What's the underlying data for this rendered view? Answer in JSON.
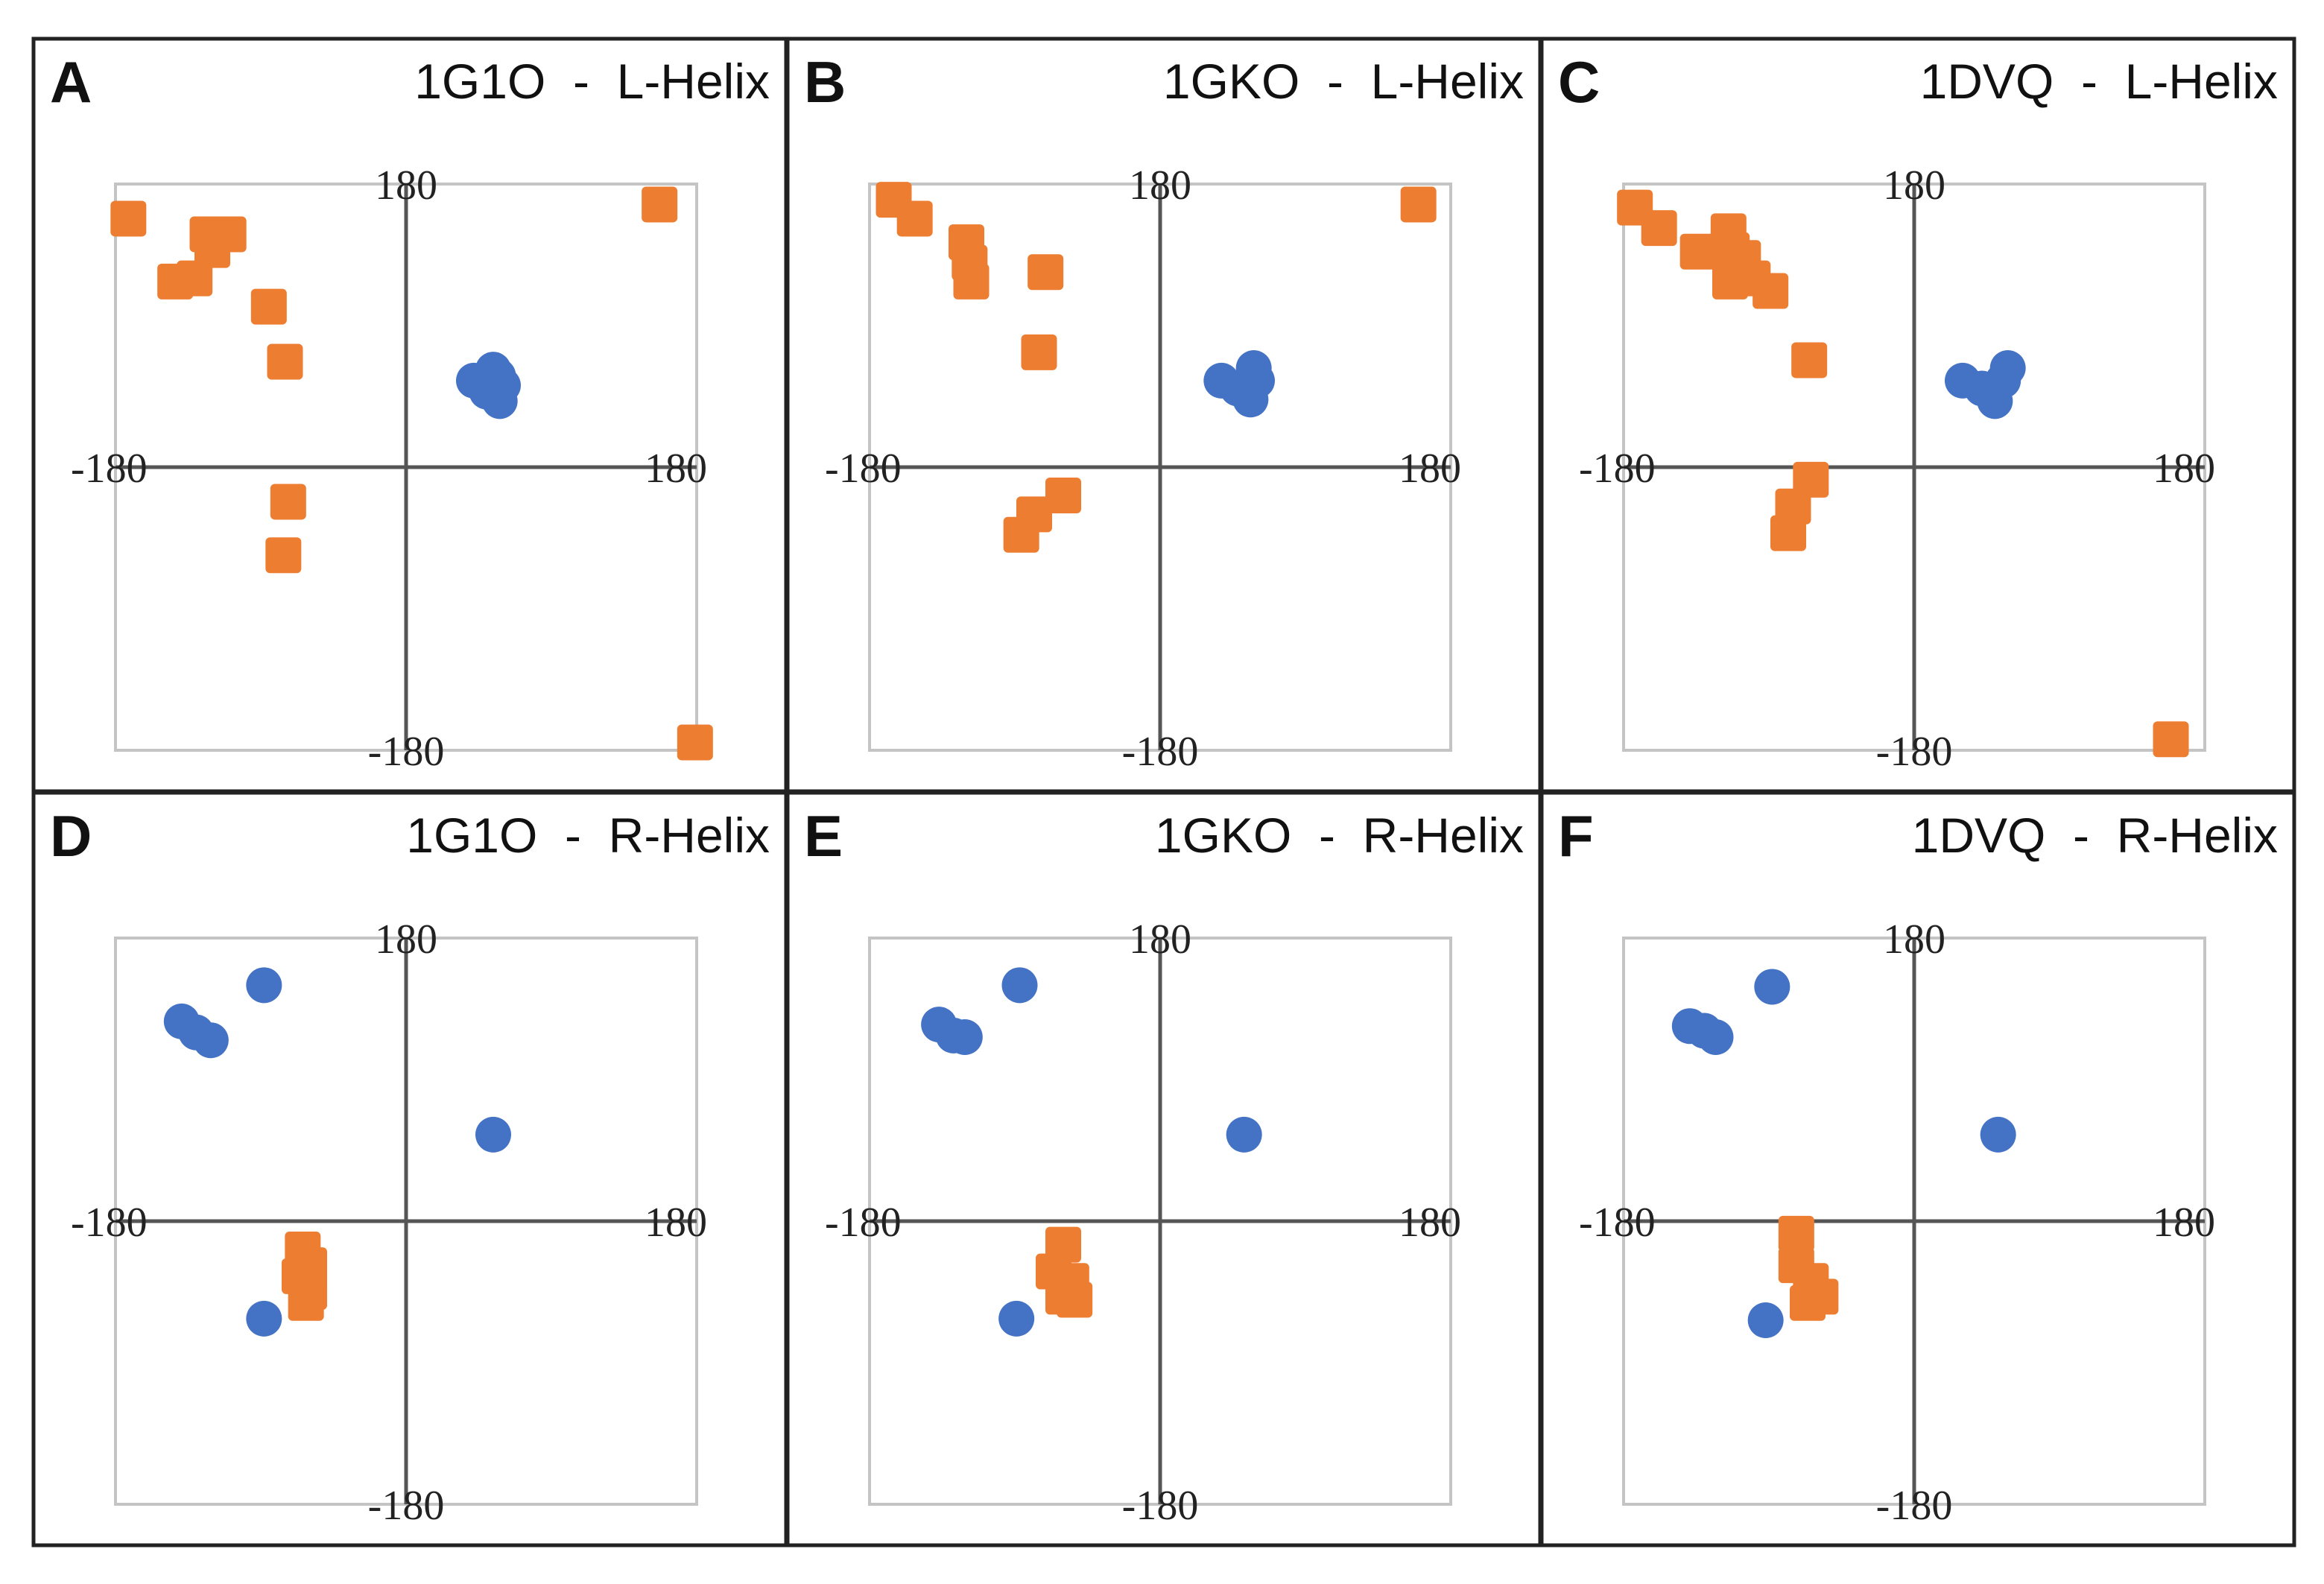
{
  "figure": {
    "series_colors": {
      "L": "#ED7D31",
      "R": "#4472C4"
    }
  },
  "chart_data": [
    {
      "type": "scatter",
      "panel": "A",
      "title": "1G1O  -  L-Helix",
      "xlim": [
        -180,
        180
      ],
      "ylim": [
        -180,
        180
      ],
      "ticks": {
        "top": "180",
        "bottom": "-180",
        "left": "-180",
        "right": "180"
      },
      "series": [
        {
          "name": "orange",
          "marker": "square",
          "color": "#ED7D31",
          "points": [
            [
              -172,
              158
            ],
            [
              -123,
              148
            ],
            [
              -110,
              148
            ],
            [
              -120,
              138
            ],
            [
              -131,
              120
            ],
            [
              -143,
              118
            ],
            [
              -85,
              102
            ],
            [
              -75,
              67
            ],
            [
              -73,
              -22
            ],
            [
              -76,
              -56
            ],
            [
              157,
              167
            ],
            [
              179,
              -175
            ]
          ]
        },
        {
          "name": "blue",
          "marker": "circle",
          "color": "#4472C4",
          "points": [
            [
              42,
              55
            ],
            [
              50,
              48
            ],
            [
              58,
              42
            ],
            [
              60,
              52
            ],
            [
              54,
              62
            ],
            [
              57,
              58
            ]
          ]
        }
      ]
    },
    {
      "type": "scatter",
      "panel": "B",
      "title": "1GKO  -  L-Helix",
      "xlim": [
        -180,
        180
      ],
      "ylim": [
        -180,
        180
      ],
      "ticks": {
        "top": "180",
        "bottom": "-180",
        "left": "-180",
        "right": "180"
      },
      "series": [
        {
          "name": "orange",
          "marker": "square",
          "color": "#ED7D31",
          "points": [
            [
              -165,
              170
            ],
            [
              -152,
              158
            ],
            [
              -120,
              143
            ],
            [
              -118,
              130
            ],
            [
              -117,
              118
            ],
            [
              -71,
              124
            ],
            [
              -75,
              73
            ],
            [
              -60,
              -18
            ],
            [
              -78,
              -30
            ],
            [
              -86,
              -43
            ],
            [
              160,
              167
            ]
          ]
        },
        {
          "name": "blue",
          "marker": "circle",
          "color": "#4472C4",
          "points": [
            [
              38,
              55
            ],
            [
              48,
              50
            ],
            [
              56,
              43
            ],
            [
              60,
              55
            ],
            [
              58,
              63
            ]
          ]
        }
      ]
    },
    {
      "type": "scatter",
      "panel": "C",
      "title": "1DVQ  -  L-Helix",
      "xlim": [
        -180,
        180
      ],
      "ylim": [
        -180,
        180
      ],
      "ticks": {
        "top": "180",
        "bottom": "-180",
        "left": "-180",
        "right": "180"
      },
      "series": [
        {
          "name": "orange",
          "marker": "square",
          "color": "#ED7D31",
          "points": [
            [
              -173,
              165
            ],
            [
              -158,
              152
            ],
            [
              -134,
              137
            ],
            [
              -115,
              150
            ],
            [
              -113,
              138
            ],
            [
              -106,
              133
            ],
            [
              -114,
              118
            ],
            [
              -100,
              120
            ],
            [
              -89,
              112
            ],
            [
              -65,
              68
            ],
            [
              -64,
              -8
            ],
            [
              -75,
              -25
            ],
            [
              -78,
              -42
            ],
            [
              159,
              -173
            ]
          ]
        },
        {
          "name": "blue",
          "marker": "circle",
          "color": "#4472C4",
          "points": [
            [
              30,
              55
            ],
            [
              42,
              50
            ],
            [
              50,
              42
            ],
            [
              55,
              55
            ],
            [
              58,
              63
            ]
          ]
        }
      ]
    },
    {
      "type": "scatter",
      "panel": "D",
      "title": "1G1O  -  R-Helix",
      "xlim": [
        -180,
        180
      ],
      "ylim": [
        -180,
        180
      ],
      "ticks": {
        "top": "180",
        "bottom": "-180",
        "left": "-180",
        "right": "180"
      },
      "series": [
        {
          "name": "blue",
          "marker": "circle",
          "color": "#4472C4",
          "points": [
            [
              -139,
              127
            ],
            [
              -130,
              120
            ],
            [
              -121,
              115
            ],
            [
              -88,
              150
            ],
            [
              54,
              55
            ],
            [
              -88,
              -62
            ]
          ]
        },
        {
          "name": "orange",
          "marker": "square",
          "color": "#ED7D31",
          "points": [
            [
              -64,
              -18
            ],
            [
              -60,
              -28
            ],
            [
              -66,
              -35
            ],
            [
              -60,
              -45
            ],
            [
              -62,
              -52
            ]
          ]
        }
      ]
    },
    {
      "type": "scatter",
      "panel": "E",
      "title": "1GKO  -  R-Helix",
      "xlim": [
        -180,
        180
      ],
      "ylim": [
        -180,
        180
      ],
      "ticks": {
        "top": "180",
        "bottom": "-180",
        "left": "-180",
        "right": "180"
      },
      "series": [
        {
          "name": "blue",
          "marker": "circle",
          "color": "#4472C4",
          "points": [
            [
              -137,
              125
            ],
            [
              -128,
              118
            ],
            [
              -121,
              117
            ],
            [
              -87,
              150
            ],
            [
              52,
              55
            ],
            [
              -89,
              -62
            ]
          ]
        },
        {
          "name": "orange",
          "marker": "square",
          "color": "#ED7D31",
          "points": [
            [
              -60,
              -15
            ],
            [
              -66,
              -32
            ],
            [
              -55,
              -38
            ],
            [
              -60,
              -48
            ],
            [
              -53,
              -50
            ]
          ]
        }
      ]
    },
    {
      "type": "scatter",
      "panel": "F",
      "title": "1DVQ  -  R-Helix",
      "xlim": [
        -180,
        180
      ],
      "ylim": [
        -180,
        180
      ],
      "ticks": {
        "top": "180",
        "bottom": "-180",
        "left": "-180",
        "right": "180"
      },
      "series": [
        {
          "name": "blue",
          "marker": "circle",
          "color": "#4472C4",
          "points": [
            [
              -139,
              124
            ],
            [
              -130,
              121
            ],
            [
              -123,
              117
            ],
            [
              -88,
              149
            ],
            [
              52,
              55
            ],
            [
              -92,
              -63
            ]
          ]
        },
        {
          "name": "orange",
          "marker": "square",
          "color": "#ED7D31",
          "points": [
            [
              -73,
              -8
            ],
            [
              -73,
              -28
            ],
            [
              -64,
              -38
            ],
            [
              -58,
              -48
            ],
            [
              -66,
              -52
            ]
          ]
        }
      ]
    }
  ]
}
